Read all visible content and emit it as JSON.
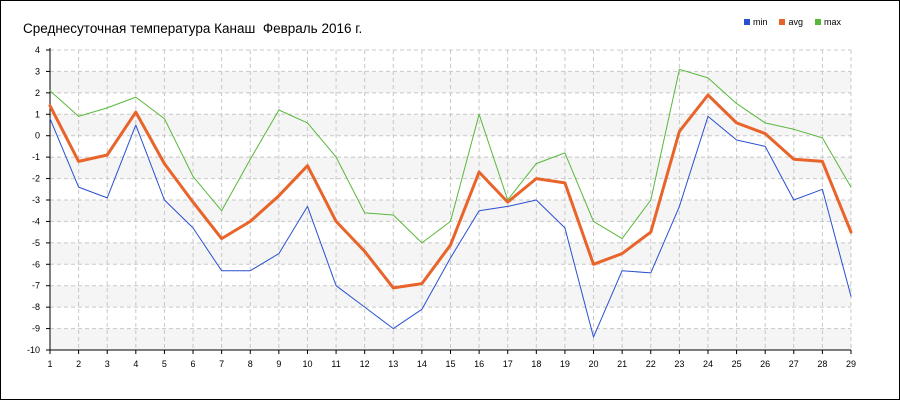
{
  "chart_data": {
    "type": "line",
    "title": "Среднесуточная температура Канаш  Февраль 2016 г.",
    "xlabel": "",
    "ylabel": "",
    "x": [
      1,
      2,
      3,
      4,
      5,
      6,
      7,
      8,
      9,
      10,
      11,
      12,
      13,
      14,
      15,
      16,
      17,
      18,
      19,
      20,
      21,
      22,
      23,
      24,
      25,
      26,
      27,
      28,
      29
    ],
    "ylim": [
      -10,
      4
    ],
    "yticks": [
      4,
      3,
      2,
      1,
      0,
      -1,
      -2,
      -3,
      -4,
      -5,
      -6,
      -7,
      -8,
      -9,
      -10
    ],
    "grid": true,
    "legend_position": "top-right",
    "series": [
      {
        "name": "min",
        "color": "#2a50d0",
        "width": 1,
        "values": [
          0.8,
          -2.4,
          -2.9,
          0.5,
          -3.0,
          -4.3,
          -6.3,
          -6.3,
          -5.5,
          -3.3,
          -7.0,
          -8.0,
          -9.0,
          -8.1,
          -5.7,
          -3.5,
          -3.3,
          -3.0,
          -4.3,
          -9.4,
          -6.3,
          -6.4,
          -3.3,
          0.9,
          -0.2,
          -0.5,
          -3.0,
          -2.5,
          -7.5
        ]
      },
      {
        "name": "avg",
        "color": "#e8642a",
        "width": 3,
        "values": [
          1.4,
          -1.2,
          -0.9,
          1.1,
          -1.3,
          -3.1,
          -4.8,
          -4.0,
          -2.8,
          -1.4,
          -4.0,
          -5.4,
          -7.1,
          -6.9,
          -5.1,
          -1.7,
          -3.1,
          -2.0,
          -2.2,
          -6.0,
          -5.5,
          -4.5,
          0.2,
          1.9,
          0.6,
          0.1,
          -1.1,
          -1.2,
          -4.5
        ]
      },
      {
        "name": "max",
        "color": "#58b83a",
        "width": 1,
        "values": [
          2.1,
          0.9,
          1.3,
          1.8,
          0.8,
          -1.9,
          -3.5,
          -1.1,
          1.2,
          0.6,
          -1.0,
          -3.6,
          -3.7,
          -5.0,
          -4.0,
          1.0,
          -3.0,
          -1.3,
          -0.8,
          -4.0,
          -4.8,
          -3.0,
          3.1,
          2.7,
          1.5,
          0.6,
          0.3,
          -0.1,
          -2.4
        ]
      }
    ]
  }
}
